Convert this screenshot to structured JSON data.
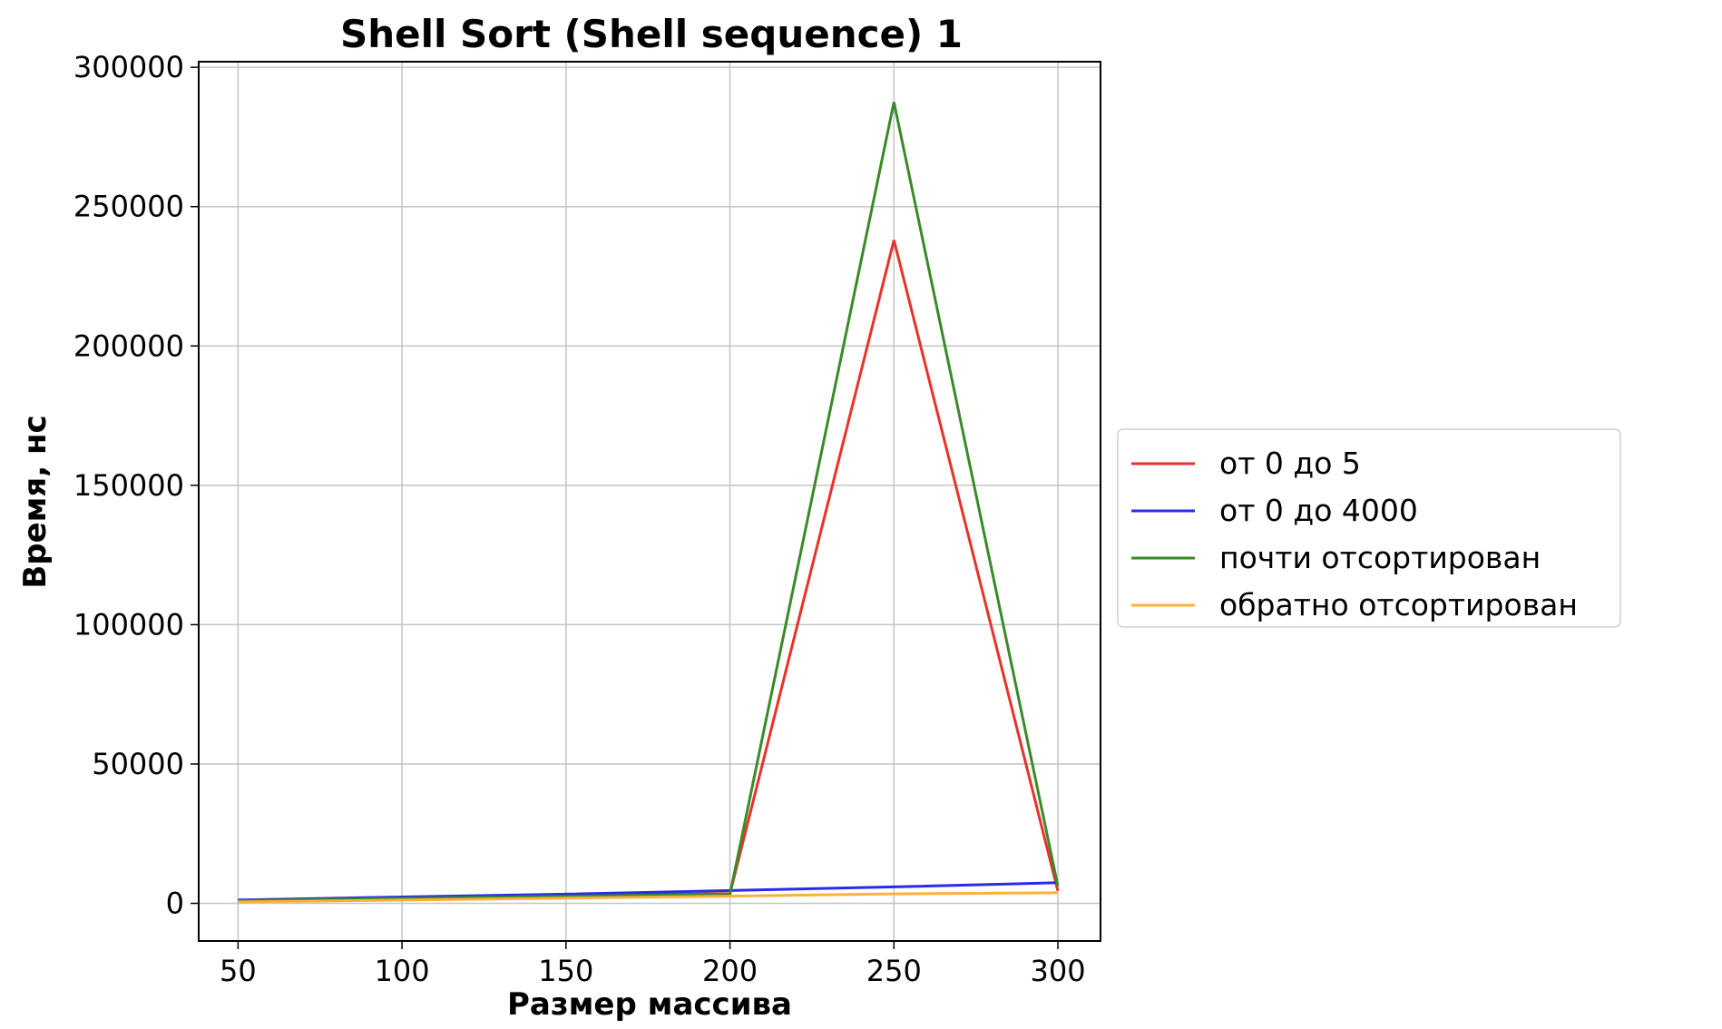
{
  "chart_data": {
    "type": "line",
    "title": "Shell Sort (Shell sequence) 1",
    "xlabel": "Размер массива",
    "ylabel": "Время, нс",
    "x": [
      50,
      100,
      150,
      200,
      250,
      300
    ],
    "xticks": [
      50,
      100,
      150,
      200,
      250,
      300
    ],
    "yticks": [
      0,
      50000,
      100000,
      150000,
      200000,
      250000,
      300000
    ],
    "xlim": [
      38,
      313
    ],
    "ylim": [
      -13500,
      302000
    ],
    "grid": true,
    "legend_position": "center-right-outside",
    "series": [
      {
        "name": "от 0 до 5",
        "color": "#e8322a",
        "values": [
          1200,
          2000,
          2800,
          3500,
          238000,
          4500
        ]
      },
      {
        "name": "от 0 до 4000",
        "color": "#2a2ae8",
        "values": [
          1200,
          2300,
          3300,
          4600,
          5900,
          7400
        ]
      },
      {
        "name": "почти отсортирован",
        "color": "#3a8a28",
        "values": [
          1000,
          1800,
          2600,
          3300,
          287500,
          6200
        ]
      },
      {
        "name": "обратно отсортирован",
        "color": "#ffb03a",
        "values": [
          500,
          1200,
          1900,
          2600,
          3400,
          3800
        ]
      }
    ]
  }
}
